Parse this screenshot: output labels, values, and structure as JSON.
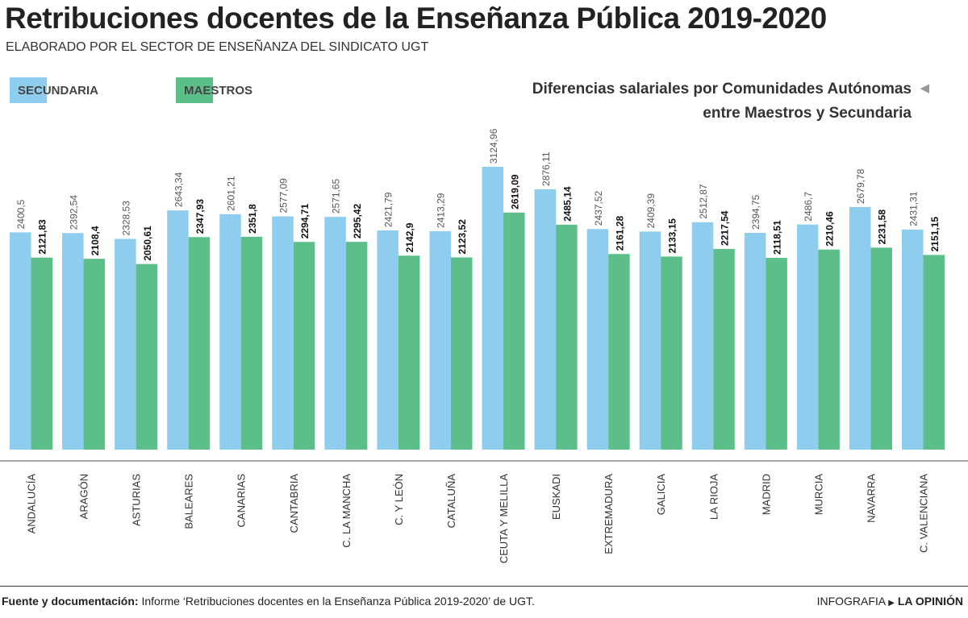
{
  "title": "Retribuciones docentes de la Enseñanza Pública 2019-2020",
  "subtitle": "ELABORADO POR EL SECTOR DE ENSEÑANZA DEL SINDICATO UGT",
  "side_note": [
    "Diferencias salariales por Comunidades Autónomas",
    "entre Maestros y Secundaria"
  ],
  "footer": {
    "source_label": "Fuente y documentación:",
    "source_text": "Informe ‘Retribuciones docentes en la Enseñanza Pública 2019-2020’ de UGT.",
    "credit_label": "INFOGRAFIA",
    "credit_brand": "LA OPINIÓN"
  },
  "chart_data": {
    "type": "bar",
    "title": "Retribuciones docentes de la Enseñanza Pública 2019-2020",
    "xlabel": "",
    "ylabel": "",
    "ylim": [
      0,
      3125
    ],
    "grid": false,
    "legend": "top-left",
    "categories": [
      "ANDALUCÍA",
      "ARAGÓN",
      "ASTURIAS",
      "BALEARES",
      "CANARIAS",
      "CANTABRIA",
      "C. LA MANCHA",
      "C. Y LEÓN",
      "CATALUÑA",
      "CEUTA Y MELILLA",
      "EUSKADI",
      "EXTREMADURA",
      "GALICIA",
      "LA RIOJA",
      "MADRID",
      "MURCIA",
      "NAVARRA",
      "C. VALENCIANA"
    ],
    "series": [
      {
        "name": "SECUNDARIA",
        "color": "#8fcdee",
        "values": [
          2400.5,
          2392.54,
          2328.53,
          2643.34,
          2601.21,
          2577.09,
          2571.65,
          2421.79,
          2413.29,
          3124.96,
          2876.11,
          2437.52,
          2409.39,
          2512.87,
          2394.75,
          2486.7,
          2679.78,
          2431.31
        ],
        "labels": [
          "2400,5",
          "2392,54",
          "2328,53",
          "2643,34",
          "2601,21",
          "2577,09",
          "2571,65",
          "2421,79",
          "2413,29",
          "3124,96",
          "2876,11",
          "2437,52",
          "2409,39",
          "2512,87",
          "2394,75",
          "2486,7",
          "2679,78",
          "2431,31"
        ]
      },
      {
        "name": "MAESTROS",
        "color": "#5cbf8a",
        "values": [
          2121.83,
          2108.4,
          2050.61,
          2347.93,
          2351.8,
          2294.71,
          2295.42,
          2142.9,
          2123.52,
          2619.09,
          2485.14,
          2161.28,
          2133.15,
          2217.54,
          2118.51,
          2210.46,
          2231.58,
          2151.15
        ],
        "labels": [
          "2121,83",
          "2108,4",
          "2050,61",
          "2347,93",
          "2351,8",
          "2294,71",
          "2295,42",
          "2142,9",
          "2123,52",
          "2619,09",
          "2485,14",
          "2161,28",
          "2133,15",
          "2217,54",
          "2118,51",
          "2210,46",
          "2231,58",
          "2151,15"
        ]
      }
    ]
  }
}
